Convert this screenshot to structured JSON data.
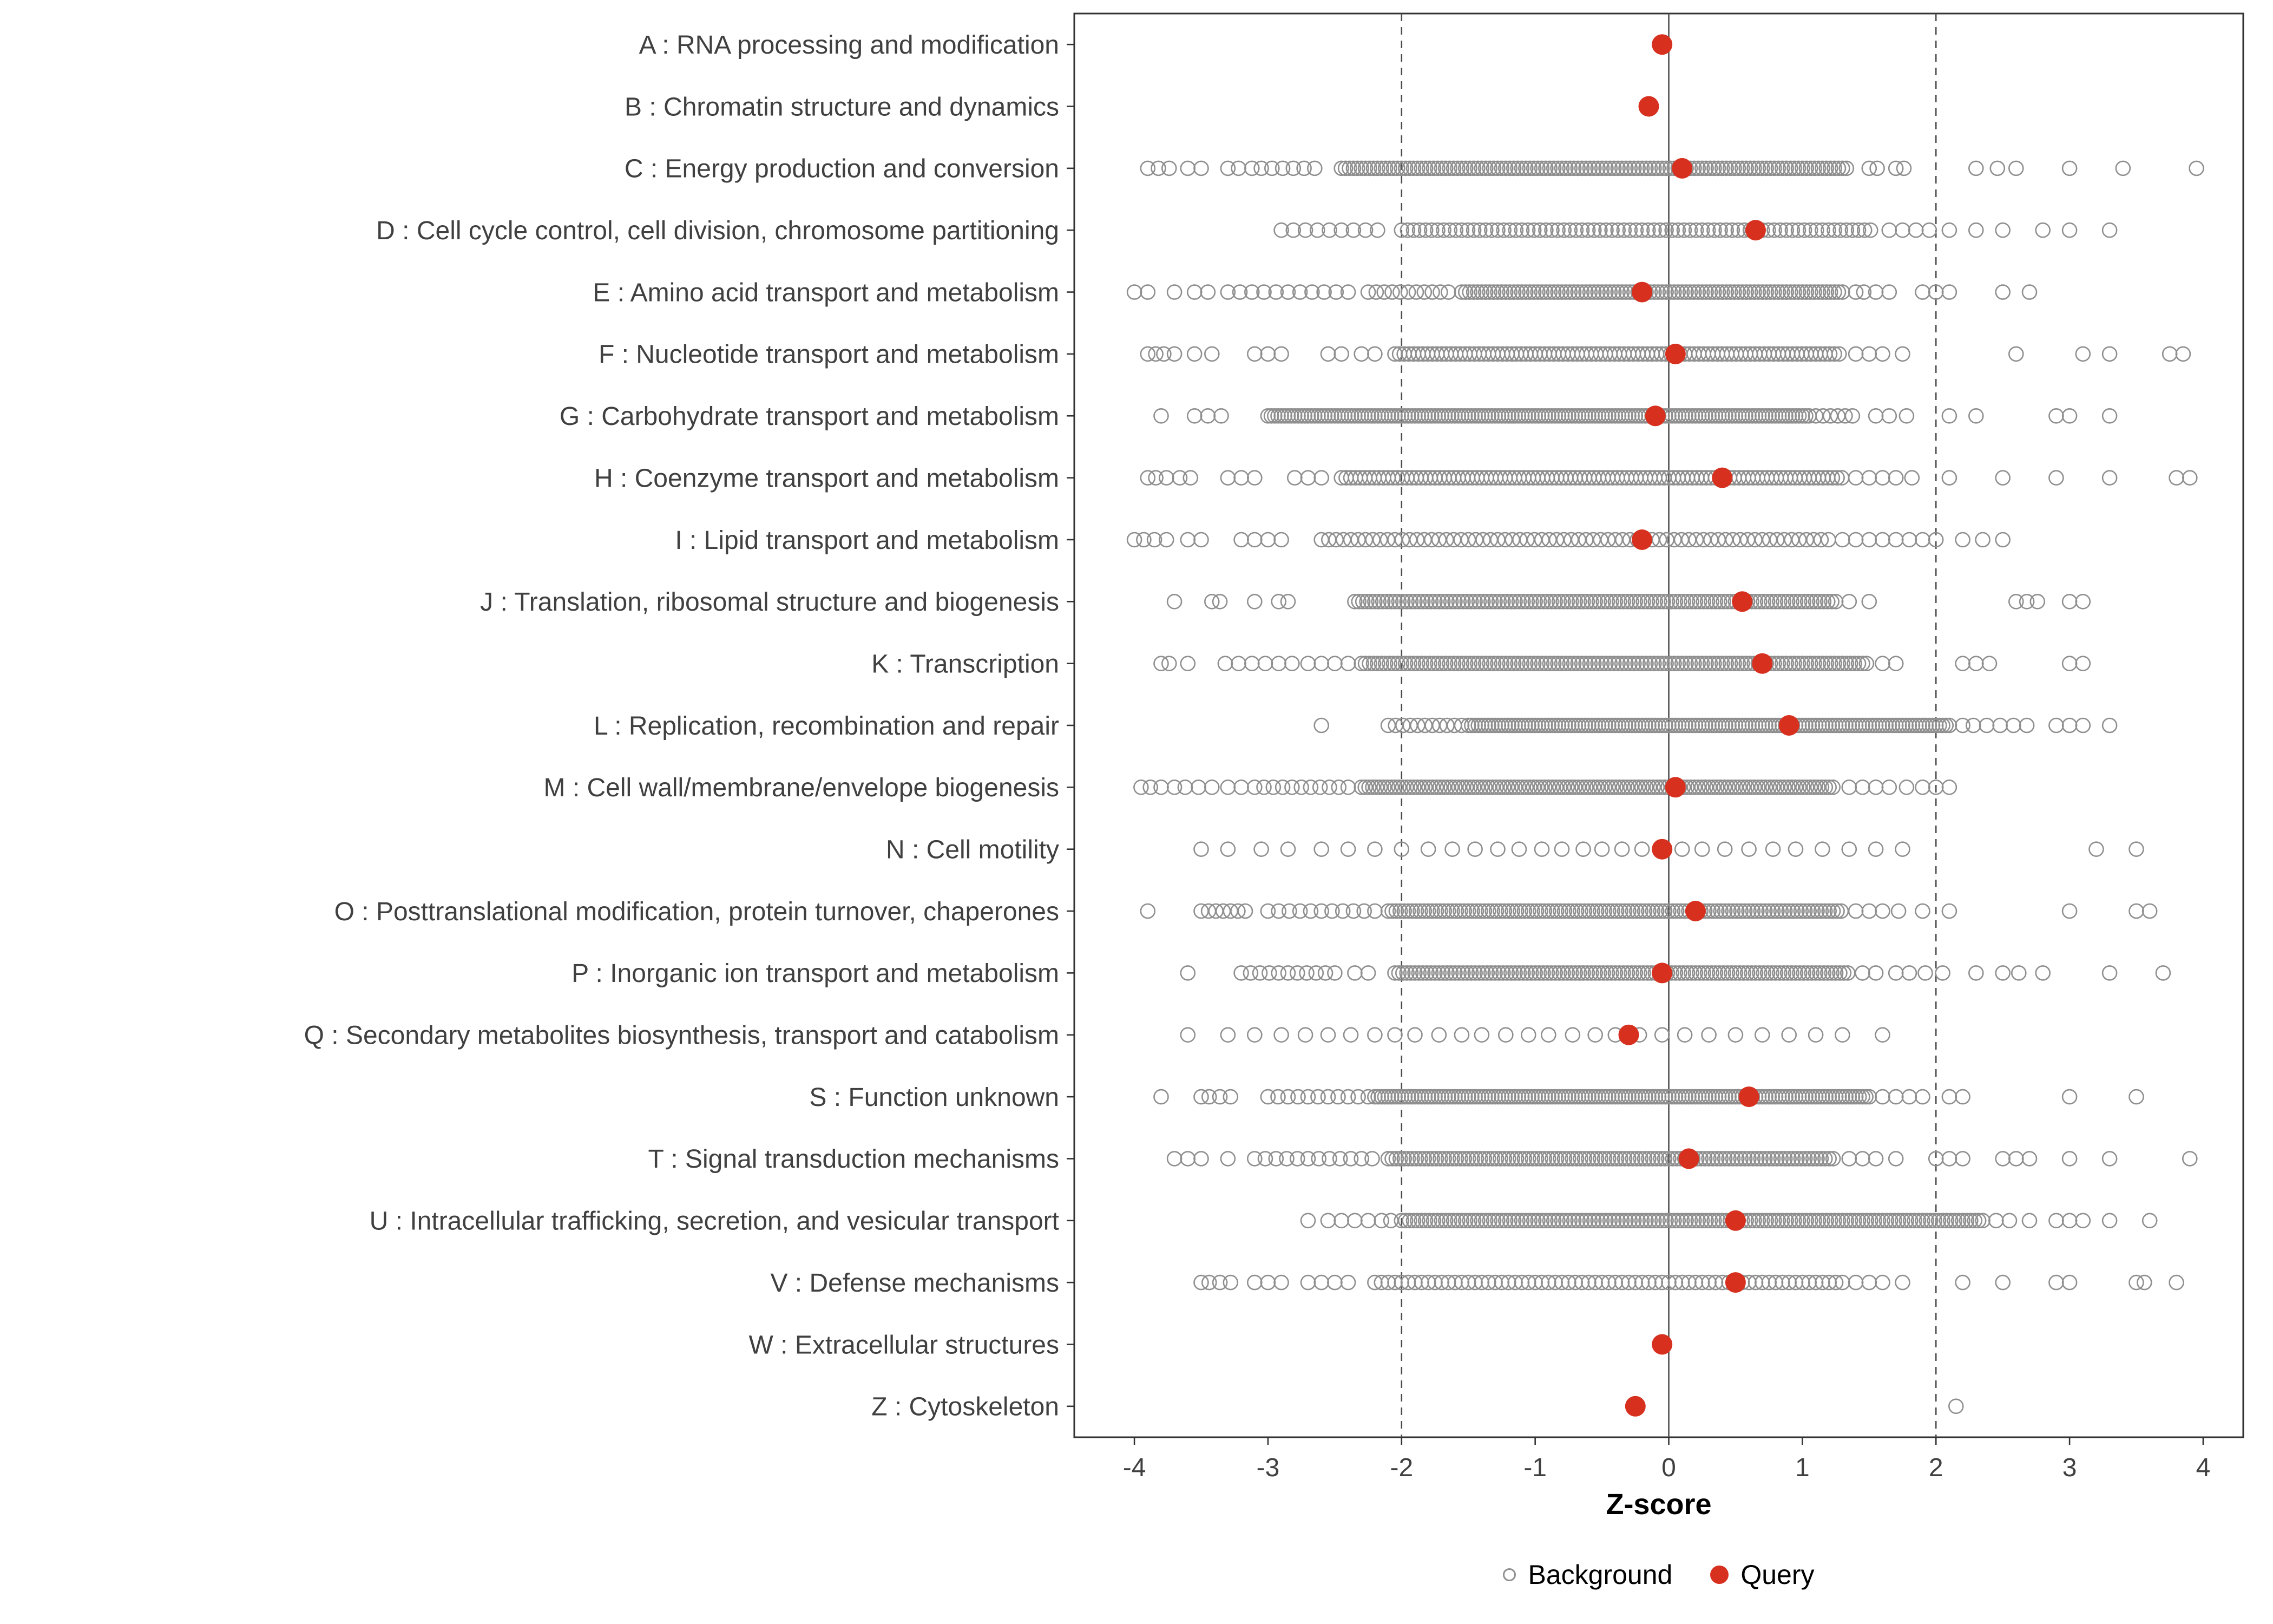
{
  "colors": {
    "background_marker": "#8f8f8f",
    "query_marker": "#d7301f",
    "panel_border": "#333333",
    "axis_text": "#404040",
    "reference_line": "#4d4d4d"
  },
  "legend": {
    "background_label": "Background",
    "query_label": "Query"
  },
  "chart_data": {
    "type": "scatter",
    "title": "",
    "xlabel": "Z-score",
    "ylabel": "",
    "xlim": [
      -4.45,
      4.3
    ],
    "x_ticks": [
      -4,
      -3,
      -2,
      -1,
      0,
      1,
      2,
      3,
      4
    ],
    "grid": false,
    "legend_position": "bottom",
    "reference_lines": {
      "solid": [
        0
      ],
      "dashed": [
        -2,
        2
      ]
    },
    "series_legend": [
      "Background",
      "Query"
    ],
    "categories": [
      {
        "label": "A : RNA processing and modification",
        "query": -0.05,
        "bg": {
          "runs": [],
          "pts": []
        }
      },
      {
        "label": "B : Chromatin structure and dynamics",
        "query": -0.15,
        "bg": {
          "runs": [],
          "pts": []
        }
      },
      {
        "label": "C : Energy production and conversion",
        "query": 0.1,
        "bg": {
          "runs": [
            [
              -3.05,
              -2.6,
              0.08
            ],
            [
              -2.45,
              1.35,
              0.03
            ]
          ],
          "pts": [
            -3.9,
            -3.82,
            -3.74,
            -3.6,
            -3.5,
            -3.3,
            -3.22,
            -3.12,
            1.5,
            1.56,
            1.7,
            1.76,
            2.3,
            2.46,
            2.6,
            3.0,
            3.4,
            3.95
          ]
        }
      },
      {
        "label": "D : Cell cycle control, cell division, chromosome partitioning",
        "query": 0.65,
        "bg": {
          "runs": [
            [
              -2.9,
              -2.15,
              0.09
            ],
            [
              -2.0,
              1.55,
              0.045
            ]
          ],
          "pts": [
            1.65,
            1.75,
            1.85,
            1.95,
            2.1,
            2.3,
            2.5,
            2.8,
            3.0,
            3.3
          ]
        }
      },
      {
        "label": "E : Amino acid transport and metabolism",
        "query": -0.2,
        "bg": {
          "runs": [
            [
              -3.3,
              -2.35,
              0.09
            ],
            [
              -2.25,
              -1.6,
              0.06
            ],
            [
              -1.55,
              1.3,
              0.03
            ]
          ],
          "pts": [
            -4.0,
            -3.9,
            -3.7,
            -3.55,
            -3.45,
            1.4,
            1.46,
            1.55,
            1.65,
            1.9,
            2.0,
            2.1,
            2.5,
            2.7
          ]
        }
      },
      {
        "label": "F : Nucleotide transport and metabolism",
        "query": 0.05,
        "bg": {
          "runs": [
            [
              -2.05,
              1.3,
              0.035
            ]
          ],
          "pts": [
            -3.9,
            -3.84,
            -3.78,
            -3.7,
            -3.55,
            -3.42,
            -3.1,
            -3.0,
            -2.9,
            -2.55,
            -2.45,
            -2.3,
            -2.2,
            1.4,
            1.5,
            1.6,
            1.75,
            2.6,
            3.1,
            3.3,
            3.75,
            3.85
          ]
        }
      },
      {
        "label": "G : Carbohydrate transport and metabolism",
        "query": -0.1,
        "bg": {
          "runs": [
            [
              -3.0,
              1.05,
              0.025
            ],
            [
              1.1,
              1.42,
              0.055
            ]
          ],
          "pts": [
            -3.8,
            -3.55,
            -3.45,
            -3.35,
            1.55,
            1.65,
            1.78,
            2.1,
            2.3,
            2.9,
            3.0,
            3.3
          ]
        }
      },
      {
        "label": "H : Coenzyme transport and metabolism",
        "query": 0.4,
        "bg": {
          "runs": [
            [
              -2.45,
              1.3,
              0.035
            ]
          ],
          "pts": [
            -3.9,
            -3.84,
            -3.76,
            -3.66,
            -3.58,
            -3.3,
            -3.2,
            -3.1,
            -2.8,
            -2.7,
            -2.6,
            1.4,
            1.5,
            1.6,
            1.7,
            1.82,
            2.1,
            2.5,
            2.9,
            3.3,
            3.8,
            3.9
          ]
        }
      },
      {
        "label": "I : Lipid transport and metabolism",
        "query": -0.2,
        "bg": {
          "runs": [
            [
              -2.6,
              1.2,
              0.055
            ]
          ],
          "pts": [
            -4.0,
            -3.93,
            -3.85,
            -3.76,
            -3.6,
            -3.5,
            -3.2,
            -3.1,
            -3.0,
            -2.9,
            1.3,
            1.4,
            1.5,
            1.6,
            1.7,
            1.8,
            1.9,
            2.0,
            2.2,
            2.35,
            2.5
          ]
        }
      },
      {
        "label": "J : Translation, ribosomal structure and biogenesis",
        "query": 0.55,
        "bg": {
          "runs": [
            [
              -2.35,
              1.25,
              0.03
            ]
          ],
          "pts": [
            -3.7,
            -3.42,
            -3.36,
            -3.1,
            -2.92,
            -2.85,
            1.35,
            1.5,
            2.6,
            2.68,
            2.76,
            3.0,
            3.1
          ]
        }
      },
      {
        "label": "K : Transcription",
        "query": 0.7,
        "bg": {
          "runs": [
            [
              -2.3,
              1.5,
              0.03
            ]
          ],
          "pts": [
            -3.8,
            -3.74,
            -3.6,
            -3.32,
            -3.22,
            -3.12,
            -3.02,
            -2.92,
            -2.82,
            -2.7,
            -2.6,
            -2.5,
            -2.4,
            1.6,
            1.7,
            2.2,
            2.3,
            2.4,
            3.0,
            3.1
          ]
        }
      },
      {
        "label": "L : Replication, recombination and repair",
        "query": 0.9,
        "bg": {
          "runs": [
            [
              -2.1,
              -1.55,
              0.055
            ],
            [
              -1.5,
              2.1,
              0.025
            ]
          ],
          "pts": [
            -2.6,
            2.2,
            2.28,
            2.38,
            2.48,
            2.58,
            2.68,
            2.9,
            3.0,
            3.1,
            3.3
          ]
        }
      },
      {
        "label": "M : Cell wall/membrane/envelope biogenesis",
        "query": 0.05,
        "bg": {
          "runs": [
            [
              -3.1,
              -2.4,
              0.07
            ],
            [
              -2.3,
              1.25,
              0.028
            ]
          ],
          "pts": [
            -3.95,
            -3.88,
            -3.8,
            -3.7,
            -3.62,
            -3.52,
            -3.42,
            -3.3,
            -3.2,
            1.35,
            1.45,
            1.55,
            1.65,
            1.78,
            1.9,
            2.0,
            2.1
          ]
        }
      },
      {
        "label": "N : Cell motility",
        "query": -0.05,
        "bg": {
          "runs": [],
          "pts": [
            -3.5,
            -3.3,
            -3.05,
            -2.85,
            -2.6,
            -2.4,
            -2.2,
            -2.0,
            -1.8,
            -1.62,
            -1.45,
            -1.28,
            -1.12,
            -0.95,
            -0.8,
            -0.64,
            -0.5,
            -0.35,
            -0.2,
            -0.06,
            0.1,
            0.25,
            0.42,
            0.6,
            0.78,
            0.95,
            1.15,
            1.35,
            1.55,
            1.75,
            3.2,
            3.5
          ]
        }
      },
      {
        "label": "O : Posttranslational modification, protein turnover, chaperones",
        "query": 0.2,
        "bg": {
          "runs": [
            [
              -3.5,
              -3.15,
              0.055
            ],
            [
              -3.0,
              -2.2,
              0.08
            ],
            [
              -2.1,
              1.3,
              0.03
            ]
          ],
          "pts": [
            -3.9,
            1.4,
            1.5,
            1.6,
            1.72,
            1.9,
            2.1,
            3.0,
            3.5,
            3.6
          ]
        }
      },
      {
        "label": "P : Inorganic ion transport and metabolism",
        "query": -0.05,
        "bg": {
          "runs": [
            [
              -3.2,
              -2.5,
              0.07
            ],
            [
              -2.05,
              1.35,
              0.03
            ]
          ],
          "pts": [
            -3.6,
            -2.35,
            -2.25,
            1.45,
            1.55,
            1.7,
            1.8,
            1.92,
            2.05,
            2.3,
            2.5,
            2.62,
            2.8,
            3.3,
            3.7
          ]
        }
      },
      {
        "label": "Q : Secondary metabolites biosynthesis, transport and catabolism",
        "query": -0.3,
        "bg": {
          "runs": [],
          "pts": [
            -3.6,
            -3.3,
            -3.1,
            -2.9,
            -2.72,
            -2.55,
            -2.38,
            -2.2,
            -2.05,
            -1.9,
            -1.72,
            -1.55,
            -1.4,
            -1.22,
            -1.05,
            -0.9,
            -0.72,
            -0.55,
            -0.4,
            -0.22,
            -0.05,
            0.12,
            0.3,
            0.5,
            0.7,
            0.9,
            1.1,
            1.3,
            1.6
          ]
        }
      },
      {
        "label": "S : Function unknown",
        "query": 0.6,
        "bg": {
          "runs": [
            [
              -3.0,
              -2.25,
              0.075
            ],
            [
              -2.2,
              1.5,
              0.025
            ]
          ],
          "pts": [
            -3.8,
            -3.5,
            -3.44,
            -3.36,
            -3.28,
            1.6,
            1.7,
            1.8,
            1.9,
            2.1,
            2.2,
            3.0,
            3.5
          ]
        }
      },
      {
        "label": "T : Signal transduction mechanisms",
        "query": 0.15,
        "bg": {
          "runs": [
            [
              -3.1,
              -2.2,
              0.08
            ],
            [
              -2.1,
              1.25,
              0.03
            ]
          ],
          "pts": [
            -3.7,
            -3.6,
            -3.5,
            -3.3,
            1.35,
            1.45,
            1.55,
            1.7,
            2.0,
            2.1,
            2.2,
            2.5,
            2.6,
            2.7,
            3.0,
            3.3,
            3.9
          ]
        }
      },
      {
        "label": "U : Intracellular trafficking, secretion, and vesicular transport",
        "query": 0.5,
        "bg": {
          "runs": [
            [
              -2.0,
              2.35,
              0.03
            ]
          ],
          "pts": [
            -2.7,
            -2.55,
            -2.45,
            -2.35,
            -2.25,
            -2.15,
            -2.08,
            2.45,
            2.55,
            2.7,
            2.9,
            3.0,
            3.1,
            3.3,
            3.6
          ]
        }
      },
      {
        "label": "V : Defense mechanisms",
        "query": 0.5,
        "bg": {
          "runs": [
            [
              -2.2,
              1.3,
              0.05
            ]
          ],
          "pts": [
            -3.5,
            -3.44,
            -3.36,
            -3.28,
            -3.1,
            -3.0,
            -2.9,
            -2.7,
            -2.6,
            -2.5,
            -2.4,
            1.4,
            1.5,
            1.6,
            1.75,
            2.2,
            2.5,
            2.9,
            3.0,
            3.5,
            3.56,
            3.8
          ]
        }
      },
      {
        "label": "W : Extracellular structures",
        "query": -0.05,
        "bg": {
          "runs": [],
          "pts": []
        }
      },
      {
        "label": "Z : Cytoskeleton",
        "query": -0.25,
        "bg": {
          "runs": [],
          "pts": [
            2.15
          ]
        }
      }
    ]
  }
}
